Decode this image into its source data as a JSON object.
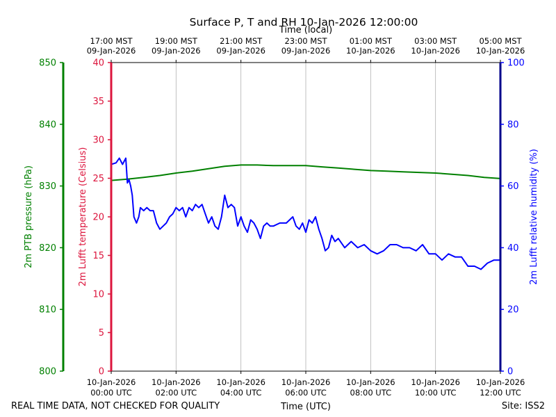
{
  "chart_data": {
    "type": "line",
    "title": "Surface P, T and RH 10-Jan-2026 12:00:00",
    "top_axis_label": "Time (local)",
    "bottom_axis_label": "Time (UTC)",
    "footer_left": "REAL TIME DATA, NOT CHECKED FOR QUALITY",
    "footer_right": "Site: ISS2",
    "x_range_hours": [
      0,
      12
    ],
    "top_ticks": [
      {
        "hour": 0,
        "line1": "17:00 MST",
        "line2": "09-Jan-2026"
      },
      {
        "hour": 2,
        "line1": "19:00 MST",
        "line2": "09-Jan-2026"
      },
      {
        "hour": 4,
        "line1": "21:00 MST",
        "line2": "09-Jan-2026"
      },
      {
        "hour": 6,
        "line1": "23:00 MST",
        "line2": "09-Jan-2026"
      },
      {
        "hour": 8,
        "line1": "01:00 MST",
        "line2": "10-Jan-2026"
      },
      {
        "hour": 10,
        "line1": "03:00 MST",
        "line2": "10-Jan-2026"
      },
      {
        "hour": 12,
        "line1": "05:00 MST",
        "line2": "10-Jan-2026"
      }
    ],
    "bottom_ticks": [
      {
        "hour": 0,
        "line1": "10-Jan-2026",
        "line2": "00:00 UTC"
      },
      {
        "hour": 2,
        "line1": "10-Jan-2026",
        "line2": "02:00 UTC"
      },
      {
        "hour": 4,
        "line1": "10-Jan-2026",
        "line2": "04:00 UTC"
      },
      {
        "hour": 6,
        "line1": "10-Jan-2026",
        "line2": "06:00 UTC"
      },
      {
        "hour": 8,
        "line1": "10-Jan-2026",
        "line2": "08:00 UTC"
      },
      {
        "hour": 10,
        "line1": "10-Jan-2026",
        "line2": "10:00 UTC"
      },
      {
        "hour": 12,
        "line1": "10-Jan-2026",
        "line2": "12:00 UTC"
      }
    ],
    "axes": {
      "pressure": {
        "label": "2m PTB pressure (hPa)",
        "color": "#008000",
        "ylim": [
          800,
          850
        ],
        "ticks": [
          800,
          810,
          820,
          830,
          840,
          850
        ]
      },
      "temperature": {
        "label": "2m Lufft temperature (Celsius)",
        "color": "#dc143c",
        "ylim": [
          0,
          40
        ],
        "ticks": [
          0,
          5,
          10,
          15,
          20,
          25,
          30,
          35,
          40
        ]
      },
      "humidity": {
        "label": "2m Lufft relative humidity (%)",
        "color": "#0000ff",
        "ylim": [
          0,
          100
        ],
        "ticks": [
          0,
          20,
          40,
          60,
          80,
          100
        ]
      }
    },
    "series": [
      {
        "name": "2m PTB pressure",
        "axis": "pressure",
        "color": "#008000",
        "points": [
          [
            0,
            830.9
          ],
          [
            0.5,
            831.1
          ],
          [
            1,
            831.4
          ],
          [
            1.5,
            831.7
          ],
          [
            2,
            832.1
          ],
          [
            2.5,
            832.4
          ],
          [
            3,
            832.8
          ],
          [
            3.5,
            833.2
          ],
          [
            4,
            833.4
          ],
          [
            4.5,
            833.4
          ],
          [
            5,
            833.3
          ],
          [
            5.5,
            833.3
          ],
          [
            6,
            833.3
          ],
          [
            6.5,
            833.1
          ],
          [
            7,
            832.9
          ],
          [
            7.5,
            832.7
          ],
          [
            8,
            832.5
          ],
          [
            8.5,
            832.4
          ],
          [
            9,
            832.3
          ],
          [
            9.5,
            832.2
          ],
          [
            10,
            832.1
          ],
          [
            10.5,
            831.9
          ],
          [
            11,
            831.7
          ],
          [
            11.5,
            831.4
          ],
          [
            12,
            831.2
          ]
        ]
      },
      {
        "name": "2m Lufft temperature",
        "axis": "temperature",
        "color": "#dc143c",
        "points": []
      },
      {
        "name": "2m Lufft relative humidity",
        "axis": "humidity",
        "color": "#0000ff",
        "points": [
          [
            0,
            67
          ],
          [
            0.15,
            67.5
          ],
          [
            0.25,
            69
          ],
          [
            0.35,
            67
          ],
          [
            0.45,
            69
          ],
          [
            0.5,
            61
          ],
          [
            0.55,
            62
          ],
          [
            0.6,
            60
          ],
          [
            0.65,
            57
          ],
          [
            0.7,
            50
          ],
          [
            0.78,
            48
          ],
          [
            0.85,
            50
          ],
          [
            0.9,
            53
          ],
          [
            1,
            52
          ],
          [
            1.1,
            53
          ],
          [
            1.2,
            52
          ],
          [
            1.3,
            52
          ],
          [
            1.4,
            48
          ],
          [
            1.5,
            46
          ],
          [
            1.6,
            47
          ],
          [
            1.7,
            48
          ],
          [
            1.8,
            50
          ],
          [
            1.9,
            51
          ],
          [
            2,
            53
          ],
          [
            2.1,
            52
          ],
          [
            2.2,
            53
          ],
          [
            2.3,
            50
          ],
          [
            2.4,
            53
          ],
          [
            2.5,
            52
          ],
          [
            2.6,
            54
          ],
          [
            2.7,
            53
          ],
          [
            2.8,
            54
          ],
          [
            2.9,
            51
          ],
          [
            3,
            48
          ],
          [
            3.1,
            50
          ],
          [
            3.2,
            47
          ],
          [
            3.3,
            46
          ],
          [
            3.4,
            50
          ],
          [
            3.5,
            57
          ],
          [
            3.6,
            53
          ],
          [
            3.7,
            54
          ],
          [
            3.8,
            53
          ],
          [
            3.9,
            47
          ],
          [
            4,
            50
          ],
          [
            4.1,
            47
          ],
          [
            4.2,
            45
          ],
          [
            4.3,
            49
          ],
          [
            4.4,
            48
          ],
          [
            4.5,
            46
          ],
          [
            4.6,
            43
          ],
          [
            4.7,
            47
          ],
          [
            4.8,
            48
          ],
          [
            4.9,
            47
          ],
          [
            5,
            47
          ],
          [
            5.2,
            48
          ],
          [
            5.4,
            48
          ],
          [
            5.6,
            50
          ],
          [
            5.7,
            47
          ],
          [
            5.8,
            46
          ],
          [
            5.9,
            48
          ],
          [
            6,
            45
          ],
          [
            6.1,
            49
          ],
          [
            6.2,
            48
          ],
          [
            6.3,
            50
          ],
          [
            6.4,
            46
          ],
          [
            6.5,
            43
          ],
          [
            6.6,
            39
          ],
          [
            6.7,
            40
          ],
          [
            6.8,
            44
          ],
          [
            6.9,
            42
          ],
          [
            7,
            43
          ],
          [
            7.2,
            40
          ],
          [
            7.4,
            42
          ],
          [
            7.6,
            40
          ],
          [
            7.8,
            41
          ],
          [
            8,
            39
          ],
          [
            8.2,
            38
          ],
          [
            8.4,
            39
          ],
          [
            8.6,
            41
          ],
          [
            8.8,
            41
          ],
          [
            9,
            40
          ],
          [
            9.2,
            40
          ],
          [
            9.4,
            39
          ],
          [
            9.6,
            41
          ],
          [
            9.8,
            38
          ],
          [
            10,
            38
          ],
          [
            10.2,
            36
          ],
          [
            10.4,
            38
          ],
          [
            10.6,
            37
          ],
          [
            10.8,
            37
          ],
          [
            11,
            34
          ],
          [
            11.2,
            34
          ],
          [
            11.4,
            33
          ],
          [
            11.6,
            35
          ],
          [
            11.8,
            36
          ],
          [
            12,
            36
          ]
        ]
      }
    ]
  }
}
